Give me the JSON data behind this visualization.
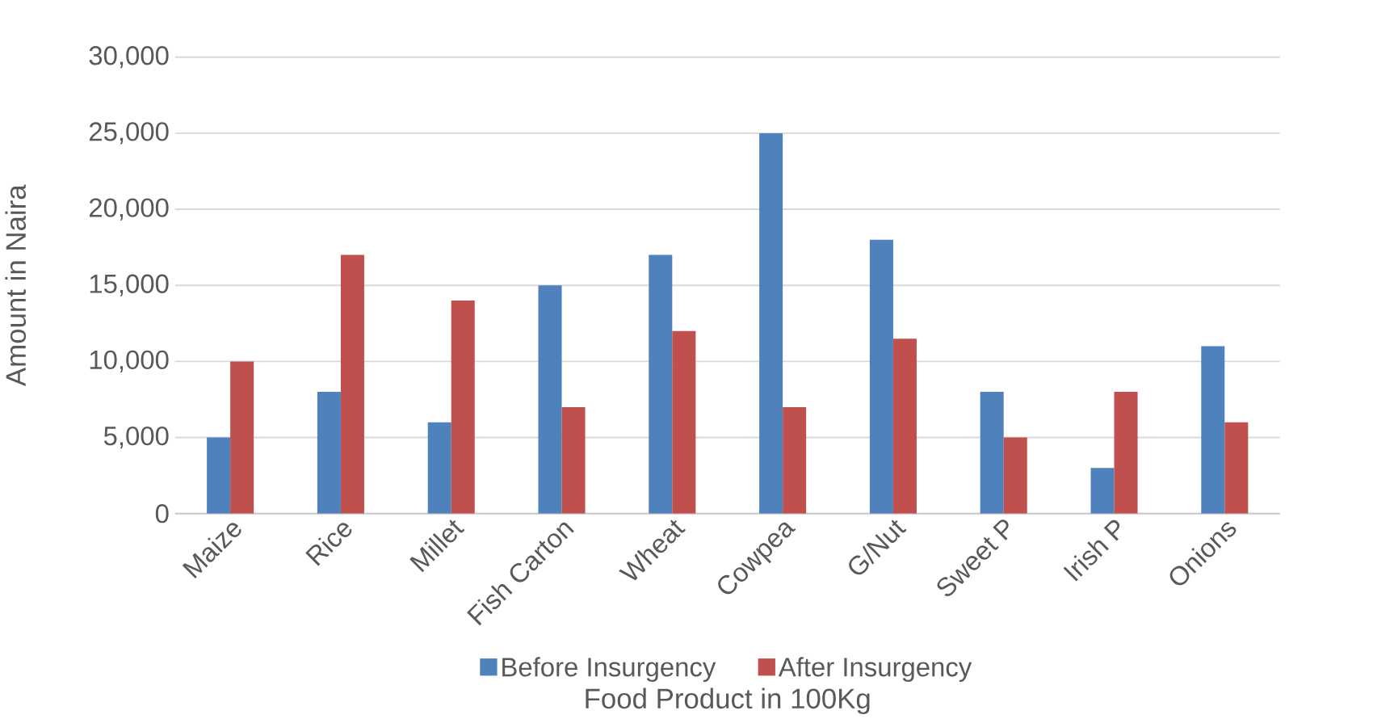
{
  "chart_data": {
    "type": "bar",
    "xlabel": "Food Product in 100Kg",
    "ylabel": "Amount in Naira",
    "categories": [
      "Maize",
      "Rice",
      "Millet",
      "Fish Carton",
      "Wheat",
      "Cowpea",
      "G/Nut",
      "Sweet P",
      "Irish P",
      "Onions"
    ],
    "series": [
      {
        "name": "Before Insurgency",
        "color": "#4f81bd",
        "values": [
          5000,
          8000,
          6000,
          15000,
          17000,
          25000,
          18000,
          8000,
          3000,
          11000
        ]
      },
      {
        "name": "After Insurgency",
        "color": "#c0504d",
        "values": [
          10000,
          17000,
          14000,
          7000,
          12000,
          7000,
          11500,
          5000,
          8000,
          6000
        ]
      }
    ],
    "ylim": [
      0,
      30000
    ],
    "yticks": [
      {
        "value": 0,
        "label": "0"
      },
      {
        "value": 5000,
        "label": "5,000"
      },
      {
        "value": 10000,
        "label": "10,000"
      },
      {
        "value": 15000,
        "label": "15,000"
      },
      {
        "value": 20000,
        "label": "20,000"
      },
      {
        "value": 25000,
        "label": "25,000"
      },
      {
        "value": 30000,
        "label": "30,000"
      }
    ],
    "grid": "y",
    "legend": "bottom"
  }
}
